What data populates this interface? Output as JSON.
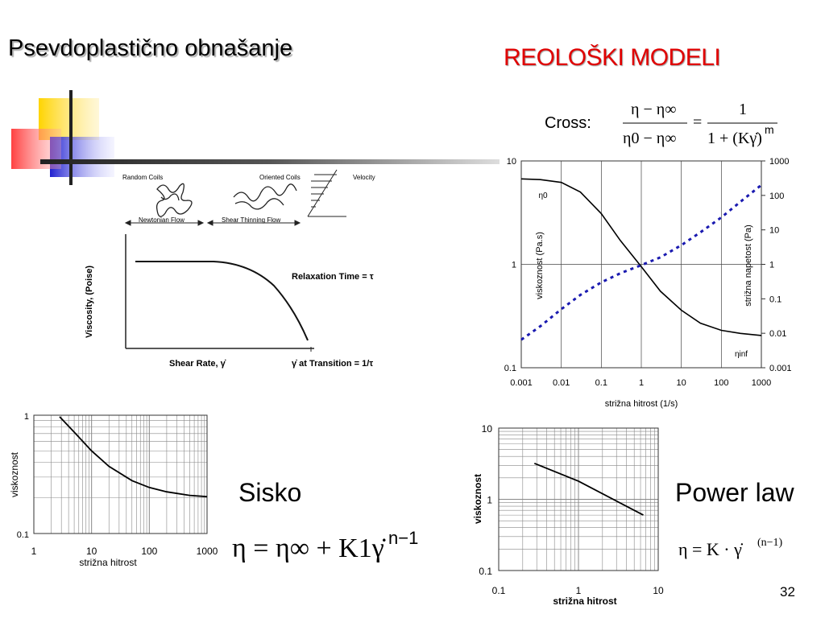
{
  "slide": {
    "title": "Psevdoplastično obnašanje",
    "subtitle": "REOLOŠKI MODELI",
    "page_number": "32"
  },
  "diagram": {
    "random_coils": "Random Coils",
    "oriented_coils": "Oriented Coils",
    "velocity": "Velocity",
    "newtonian_flow": "Newtonian Flow",
    "shear_thinning_flow": "Shear Thinning Flow",
    "ylabel": "Viscosity, (Poise)",
    "relaxation": "Relaxation Time = τ",
    "xlabel": "Shear Rate, γ̇",
    "transition": "γ̇ at Transition = 1/τ"
  },
  "cross": {
    "label": "Cross:",
    "formula_numerator_left": "η − η∞",
    "formula_denominator_left": "η0 − η∞",
    "equals": "=",
    "formula_numerator_right": "1",
    "formula_denominator_right": "1 + (Kγ̇)",
    "exponent": "m"
  },
  "sisko": {
    "label": "Sisko",
    "formula": "η = η∞ + K1γ̇",
    "exponent": "n−1"
  },
  "power_law": {
    "label": "Power law",
    "formula": "η = K · γ̇",
    "exponent": "(n−1)"
  },
  "chart_data": [
    {
      "type": "line",
      "title": "",
      "xlabel": "strižna hitrost (1/s)",
      "ylabel": "viskoznost (Pa.s)",
      "y2label": "strižna napetost (Pa)",
      "xscale": "log",
      "yscale": "log",
      "xlim": [
        0.001,
        1000
      ],
      "ylim": [
        0.1,
        10
      ],
      "y2lim": [
        0.001,
        1000
      ],
      "x_ticks": [
        "0.001",
        "0.01",
        "0.1",
        "1",
        "10",
        "100",
        "1000"
      ],
      "y_ticks": [
        "0.1",
        "1",
        "10"
      ],
      "y2_ticks": [
        "0.001",
        "0.01",
        "0.1",
        "1",
        "10",
        "100",
        "1000"
      ],
      "annotations": [
        "η0",
        "ηinf"
      ],
      "series": [
        {
          "axis": "left",
          "style": "solid",
          "x": [
            0.001,
            0.003,
            0.01,
            0.03,
            0.1,
            0.3,
            1,
            3,
            10,
            30,
            100,
            300,
            1000
          ],
          "y": [
            6.7,
            6.6,
            6.2,
            5.0,
            3.1,
            1.7,
            0.95,
            0.55,
            0.36,
            0.27,
            0.23,
            0.215,
            0.205
          ]
        },
        {
          "axis": "right",
          "style": "dashed",
          "x": [
            0.001,
            0.003,
            0.01,
            0.03,
            0.1,
            0.3,
            1,
            3,
            10,
            30,
            100,
            300,
            1000
          ],
          "y": [
            0.0065,
            0.016,
            0.05,
            0.13,
            0.3,
            0.55,
            0.95,
            1.6,
            3.6,
            8.5,
            23,
            65,
            200
          ]
        }
      ]
    },
    {
      "type": "line",
      "title": "",
      "xlabel": "strižna hitrost",
      "ylabel": "viskoznost",
      "xscale": "log",
      "yscale": "log",
      "xlim": [
        1,
        1000
      ],
      "ylim": [
        0.1,
        1
      ],
      "x_ticks": [
        "1",
        "10",
        "100",
        "1000"
      ],
      "y_ticks": [
        "0.1",
        "1"
      ],
      "series": [
        {
          "x": [
            2.8,
            5,
            10,
            20,
            50,
            100,
            200,
            500,
            1000
          ],
          "y": [
            0.97,
            0.72,
            0.5,
            0.37,
            0.28,
            0.245,
            0.225,
            0.21,
            0.205
          ]
        }
      ]
    },
    {
      "type": "line",
      "title": "",
      "xlabel": "strižna hitrost",
      "ylabel": "viskoznost",
      "xscale": "log",
      "yscale": "log",
      "xlim": [
        0.1,
        10
      ],
      "ylim": [
        0.1,
        10
      ],
      "x_ticks": [
        "0.1",
        "1",
        "10"
      ],
      "y_ticks": [
        "0.1",
        "1",
        "10"
      ],
      "series": [
        {
          "x": [
            0.28,
            1,
            6.5
          ],
          "y": [
            3.2,
            1.8,
            0.6
          ]
        }
      ]
    }
  ]
}
